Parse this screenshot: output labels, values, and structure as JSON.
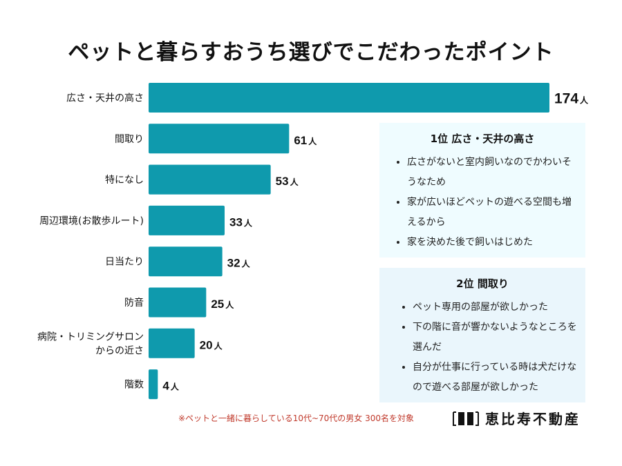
{
  "chart_data": {
    "type": "bar",
    "orientation": "horizontal",
    "title": "ペットと暮らすおうち選びでこだわったポイント",
    "unit": "人",
    "categories": [
      "広さ・天井の高さ",
      "間取り",
      "特になし",
      "周辺環境(お散歩ルート)",
      "日当たり",
      "防音",
      "病院・トリミングサロン\nからの近さ",
      "階数"
    ],
    "values": [
      174,
      61,
      53,
      33,
      32,
      25,
      20,
      4
    ],
    "xlim": [
      0,
      174
    ],
    "grid": false,
    "bar_color": "#0f9aad"
  },
  "boxes": [
    {
      "heading": "1位 広さ・天井の高さ",
      "items": [
        "広さがないと室内飼いなのでかわいそうなため",
        "家が広いほどペットの遊べる空間も増えるから",
        "家を決めた後で飼いはじめた"
      ]
    },
    {
      "heading": "2位 間取り",
      "items": [
        "ペット専用の部屋が欲しかった",
        "下の階に音が響かないようなところを選んだ",
        "自分が仕事に行っている時は犬だけなので遊べる部屋が欲しかった"
      ]
    }
  ],
  "note": "※ペットと一緒に暮らしている10代~70代の男女 300名を対象",
  "logo": {
    "text": "恵比寿不動産",
    "icon": "building-logo-icon"
  }
}
